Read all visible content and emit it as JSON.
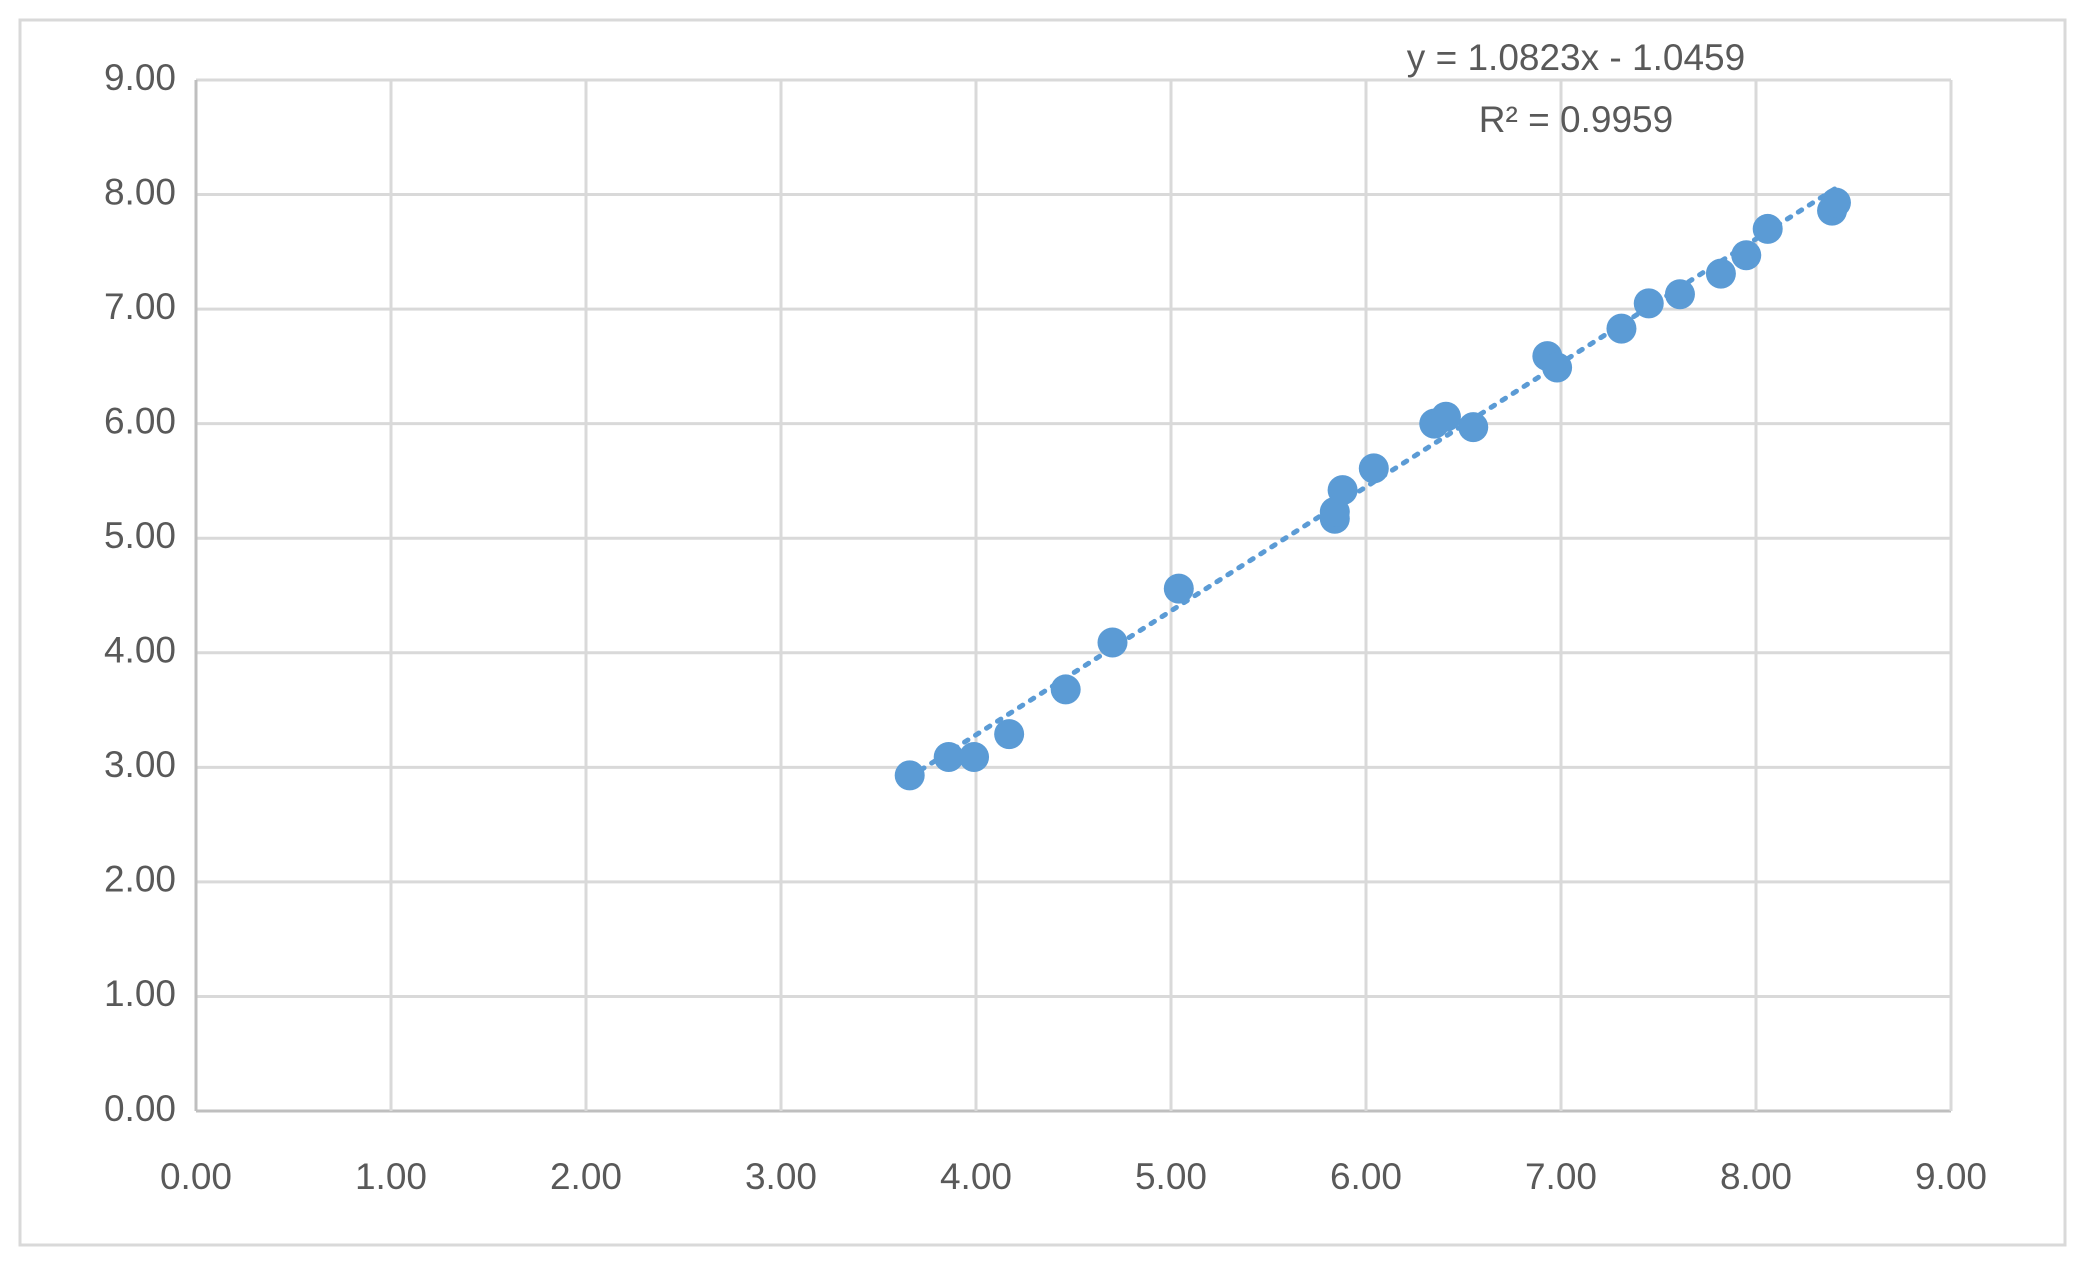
{
  "chart_data": {
    "type": "scatter",
    "x": [
      3.66,
      3.86,
      3.99,
      4.17,
      4.46,
      4.7,
      5.04,
      5.84,
      5.84,
      5.88,
      6.04,
      6.35,
      6.41,
      6.55,
      6.93,
      6.98,
      7.31,
      7.45,
      7.61,
      7.82,
      7.95,
      8.06,
      8.39,
      8.41
    ],
    "values": [
      2.93,
      3.09,
      3.09,
      3.29,
      3.68,
      4.09,
      4.56,
      5.17,
      5.23,
      5.42,
      5.61,
      6.0,
      6.06,
      5.97,
      6.59,
      6.49,
      6.83,
      7.05,
      7.13,
      7.31,
      7.47,
      7.7,
      7.86,
      7.93
    ],
    "color": "#5b9bd5",
    "xlim": [
      0,
      9
    ],
    "ylim": [
      0,
      9
    ],
    "xticks": [
      {
        "value": 0,
        "label": "0.00"
      },
      {
        "value": 1,
        "label": "1.00"
      },
      {
        "value": 2,
        "label": "2.00"
      },
      {
        "value": 3,
        "label": "3.00"
      },
      {
        "value": 4,
        "label": "4.00"
      },
      {
        "value": 5,
        "label": "5.00"
      },
      {
        "value": 6,
        "label": "6.00"
      },
      {
        "value": 7,
        "label": "7.00"
      },
      {
        "value": 8,
        "label": "8.00"
      },
      {
        "value": 9,
        "label": "9.00"
      }
    ],
    "yticks": [
      {
        "value": 0,
        "label": "0.00"
      },
      {
        "value": 1,
        "label": "1.00"
      },
      {
        "value": 2,
        "label": "2.00"
      },
      {
        "value": 3,
        "label": "3.00"
      },
      {
        "value": 4,
        "label": "4.00"
      },
      {
        "value": 5,
        "label": "5.00"
      },
      {
        "value": 6,
        "label": "6.00"
      },
      {
        "value": 7,
        "label": "7.00"
      },
      {
        "value": 8,
        "label": "8.00"
      },
      {
        "value": 9,
        "label": "9.00"
      }
    ],
    "grid": true,
    "trendline": {
      "equation": "y = 1.0823x - 1.0459",
      "r2_label": "R² = 0.9959",
      "slope": 1.0823,
      "intercept": -1.0459
    }
  }
}
